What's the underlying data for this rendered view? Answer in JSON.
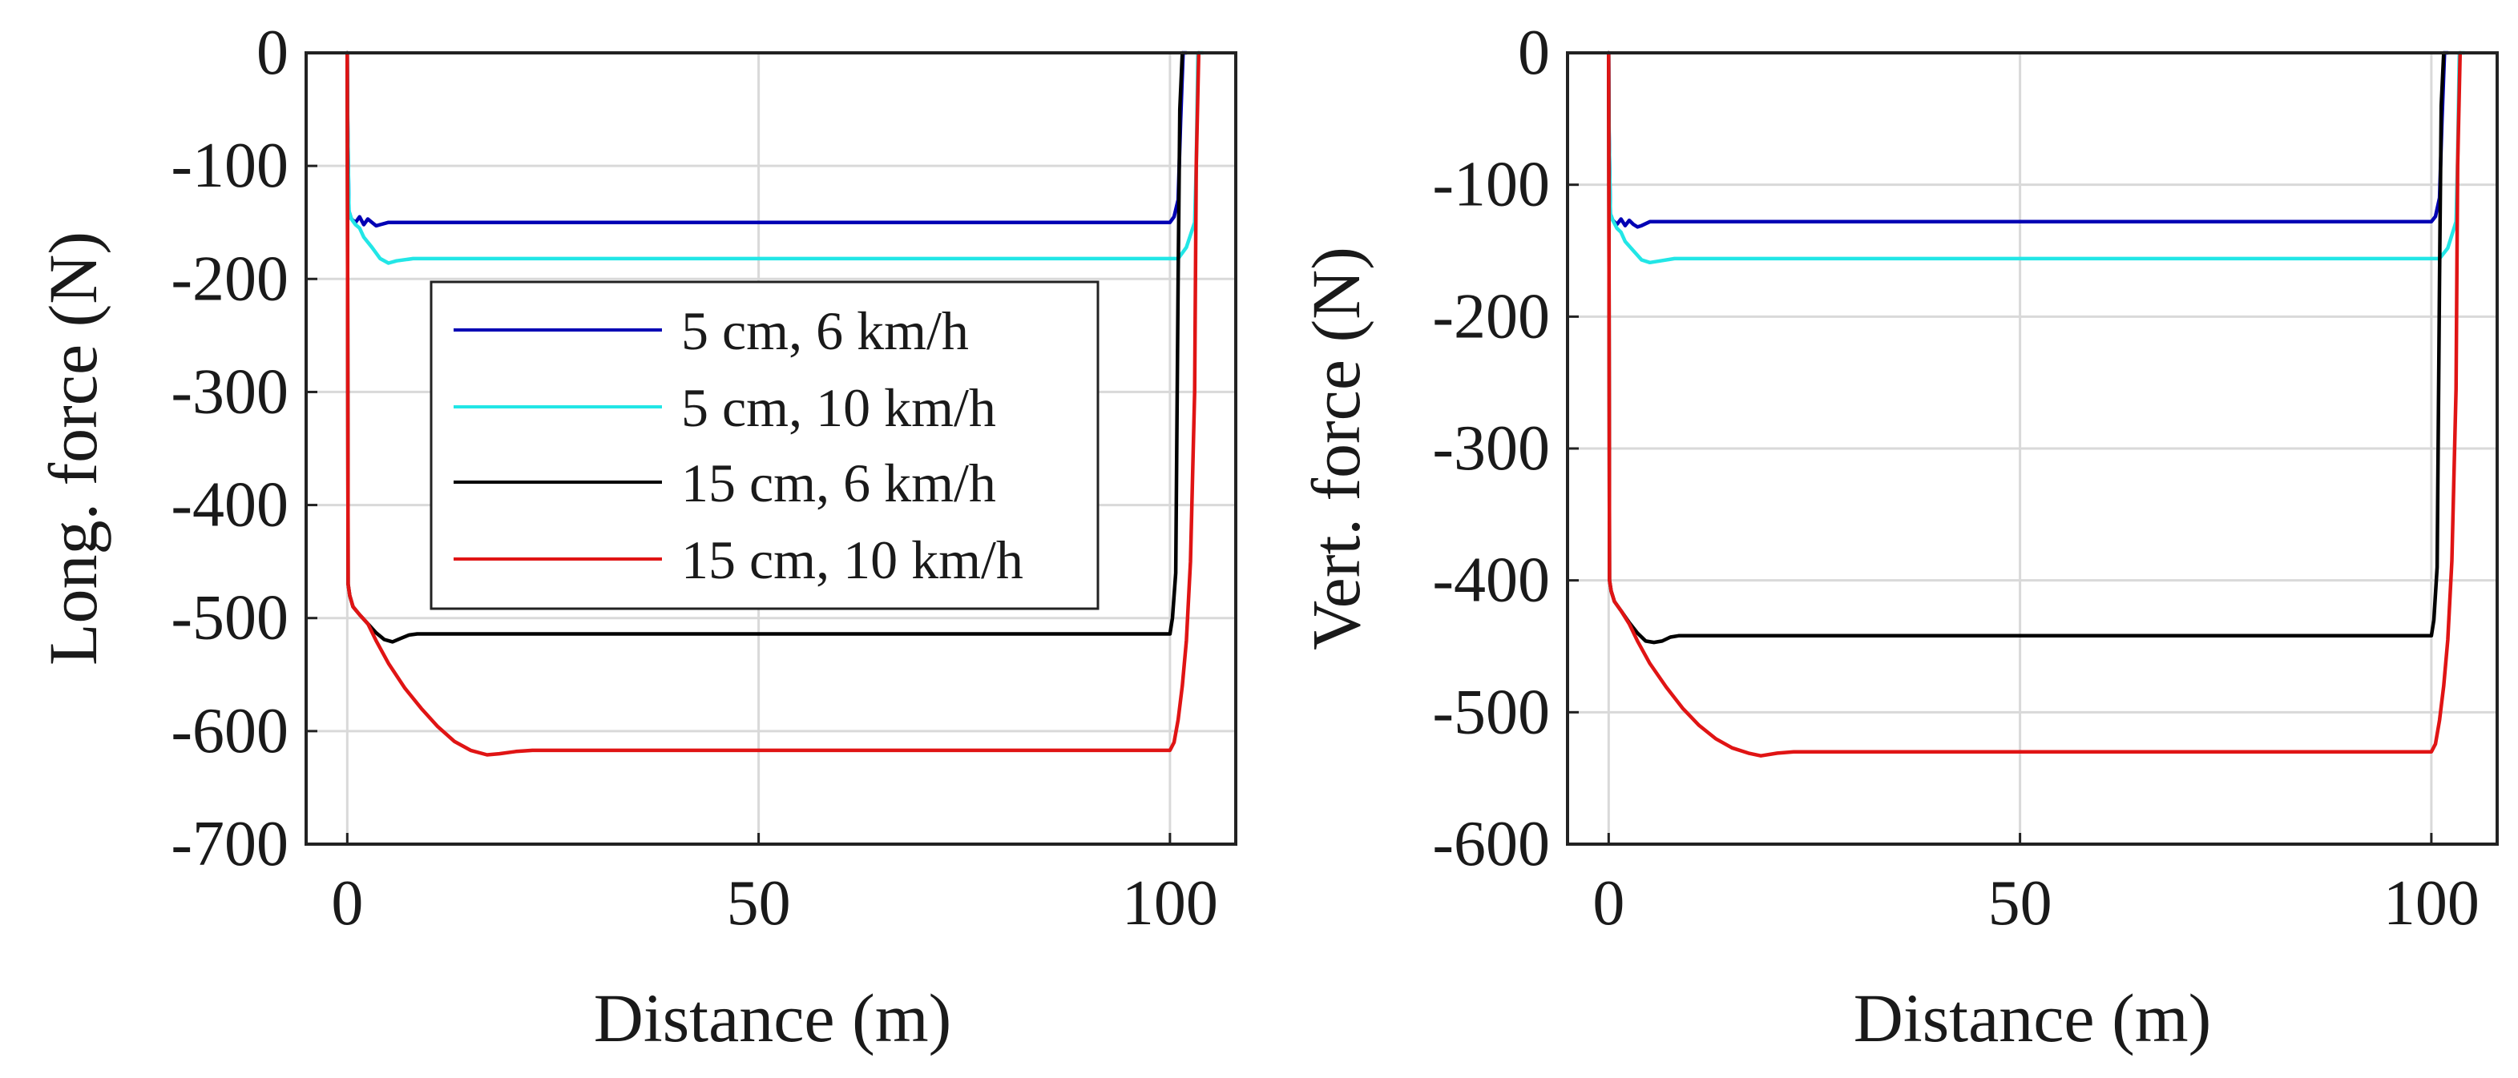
{
  "chart_data": [
    {
      "type": "line",
      "title": "",
      "xlabel": "Distance (m)",
      "ylabel": "Long. force (N)",
      "xlim": [
        -5,
        108
      ],
      "ylim": [
        -700,
        0
      ],
      "xticks": [
        0,
        50,
        100
      ],
      "yticks": [
        0,
        -100,
        -200,
        -300,
        -400,
        -500,
        -600,
        -700
      ],
      "grid": true,
      "legend_location": "center-left",
      "series": [
        {
          "name": "5 cm, 6 km/h",
          "color": "#0000b4",
          "x": [
            0,
            0.05,
            0.2,
            0.5,
            1.0,
            1.5,
            2.0,
            2.5,
            3.0,
            3.5,
            4.0,
            5.0,
            6.0,
            10,
            50,
            90,
            100,
            100.5,
            101,
            101.3,
            101.6,
            102
          ],
          "y": [
            0,
            -60,
            -140,
            -147,
            -150,
            -145,
            -152,
            -147,
            -150,
            -153,
            -152,
            -150,
            -150,
            -150,
            -150,
            -150,
            -150,
            -145,
            -130,
            -60,
            0,
            0
          ]
        },
        {
          "name": "5 cm, 10 km/h",
          "color": "#22e6e6",
          "x": [
            0,
            0.05,
            0.2,
            0.5,
            1.0,
            1.5,
            2.0,
            3.0,
            4.0,
            5.0,
            6.0,
            8.0,
            10,
            50,
            90,
            101,
            102,
            103,
            103.2,
            103.4,
            104
          ],
          "y": [
            0,
            -60,
            -140,
            -147,
            -152,
            -155,
            -163,
            -172,
            -182,
            -186,
            -184,
            -182,
            -182,
            -182,
            -182,
            -182,
            -172,
            -150,
            -100,
            0,
            0
          ]
        },
        {
          "name": "15 cm, 6 km/h",
          "color": "#000000",
          "x": [
            0,
            0.1,
            0.3,
            0.7,
            1.5,
            2.5,
            3.5,
            4.5,
            5.5,
            6.5,
            7.5,
            8.5,
            10,
            50,
            90,
            100,
            100.3,
            100.7,
            101,
            101.2,
            101.5
          ],
          "y": [
            0,
            -470,
            -480,
            -490,
            -497,
            -505,
            -513,
            -519,
            -521,
            -518,
            -515,
            -514,
            -514,
            -514,
            -514,
            -514,
            -500,
            -460,
            -200,
            -50,
            0
          ]
        },
        {
          "name": "15 cm, 10 km/h",
          "color": "#e01414",
          "x": [
            0,
            0.1,
            0.3,
            0.7,
            1.5,
            2.5,
            3.5,
            5.0,
            7.0,
            9.0,
            11.0,
            13.0,
            15.0,
            17.0,
            18.5,
            20.5,
            22.5,
            30,
            60,
            90,
            100,
            100.5,
            101,
            101.5,
            102,
            102.5,
            103,
            103.2,
            103.5
          ],
          "y": [
            0,
            -470,
            -480,
            -490,
            -497,
            -505,
            -520,
            -540,
            -562,
            -580,
            -596,
            -609,
            -617,
            -621,
            -620,
            -618,
            -617,
            -617,
            -617,
            -617,
            -617,
            -610,
            -590,
            -560,
            -520,
            -450,
            -300,
            -100,
            0
          ]
        }
      ]
    },
    {
      "type": "line",
      "title": "",
      "xlabel": "Distance (m)",
      "ylabel": "Vert. force (N)",
      "xlim": [
        -5,
        108
      ],
      "ylim": [
        -600,
        0
      ],
      "xticks": [
        0,
        50,
        100
      ],
      "yticks": [
        0,
        -100,
        -200,
        -300,
        -400,
        -500,
        -600
      ],
      "grid": true,
      "legend_location": "none",
      "series": [
        {
          "name": "5 cm, 6 km/h",
          "color": "#0000b4",
          "x": [
            0,
            0.05,
            0.2,
            0.5,
            1.0,
            1.5,
            2.0,
            2.5,
            3.0,
            3.5,
            4.0,
            5.0,
            6.0,
            10,
            50,
            90,
            100,
            100.5,
            101,
            101.3,
            101.6,
            102
          ],
          "y": [
            0,
            -60,
            -122,
            -127,
            -130,
            -126,
            -131,
            -127,
            -130,
            -132,
            -131,
            -128,
            -128,
            -128,
            -128,
            -128,
            -128,
            -124,
            -110,
            -50,
            0,
            0
          ]
        },
        {
          "name": "5 cm, 10 km/h",
          "color": "#22e6e6",
          "x": [
            0,
            0.05,
            0.2,
            0.5,
            1.0,
            1.5,
            2.0,
            3.0,
            4.0,
            5.0,
            6.0,
            8.0,
            10,
            50,
            90,
            101,
            102,
            103,
            103.2,
            103.4,
            104
          ],
          "y": [
            0,
            -60,
            -122,
            -127,
            -133,
            -136,
            -143,
            -150,
            -157,
            -159,
            -158,
            -156,
            -156,
            -156,
            -156,
            -156,
            -148,
            -128,
            -80,
            0,
            0
          ]
        },
        {
          "name": "15 cm, 6 km/h",
          "color": "#000000",
          "x": [
            0,
            0.1,
            0.3,
            0.7,
            1.5,
            2.5,
            3.5,
            4.5,
            5.5,
            6.5,
            7.5,
            8.5,
            10,
            50,
            90,
            100,
            100.3,
            100.7,
            101,
            101.2,
            101.5
          ],
          "y": [
            0,
            -400,
            -408,
            -416,
            -423,
            -432,
            -440,
            -446,
            -447,
            -446,
            -443,
            -442,
            -442,
            -442,
            -442,
            -442,
            -430,
            -390,
            -170,
            -40,
            0
          ]
        },
        {
          "name": "15 cm, 10 km/h",
          "color": "#e01414",
          "x": [
            0,
            0.1,
            0.3,
            0.7,
            1.5,
            2.5,
            3.5,
            5.0,
            7.0,
            9.0,
            11.0,
            13.0,
            15.0,
            17.0,
            18.5,
            20.5,
            22.5,
            30,
            60,
            90,
            100,
            100.5,
            101,
            101.5,
            102,
            102.5,
            103,
            103.2,
            103.5
          ],
          "y": [
            0,
            -400,
            -408,
            -416,
            -423,
            -433,
            -446,
            -463,
            -481,
            -497,
            -510,
            -520,
            -527,
            -531,
            -533,
            -531,
            -530,
            -530,
            -530,
            -530,
            -530,
            -524,
            -506,
            -480,
            -445,
            -385,
            -255,
            -85,
            0
          ]
        }
      ]
    }
  ]
}
